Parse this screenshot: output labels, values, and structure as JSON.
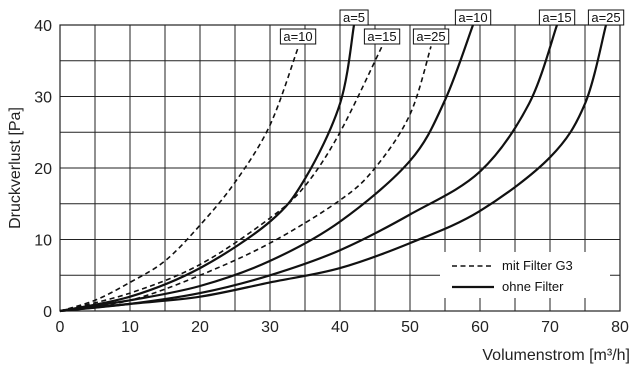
{
  "chart_data": {
    "type": "line",
    "title": "",
    "xlabel": "Volumenstrom [m³/h]",
    "ylabel": "Druckverlust [Pa]",
    "xlim": [
      0,
      80
    ],
    "ylim": [
      0,
      40
    ],
    "xticks": [
      "0",
      "10",
      "20",
      "30",
      "40",
      "50",
      "60",
      "70",
      "80"
    ],
    "yticks": [
      "0",
      "10",
      "20",
      "30",
      "40"
    ],
    "grid": true,
    "line_color": "#111111",
    "series": [
      {
        "label": "a=10",
        "group": "with_filter",
        "style": "dashed",
        "x": [
          0,
          5,
          10,
          15,
          20,
          25,
          30,
          34
        ],
        "y": [
          0,
          1.5,
          4,
          7,
          12,
          18,
          26,
          36.8
        ]
      },
      {
        "label": "a=15",
        "group": "with_filter",
        "style": "dashed",
        "x": [
          0,
          10,
          20,
          30,
          35,
          40,
          46
        ],
        "y": [
          0,
          2.5,
          6.5,
          13,
          17.5,
          25,
          37
        ]
      },
      {
        "label": "a=25",
        "group": "with_filter",
        "style": "dashed",
        "x": [
          0,
          10,
          20,
          30,
          40,
          45,
          50,
          53
        ],
        "y": [
          0,
          1.5,
          5,
          9.5,
          15.5,
          20,
          27.5,
          37
        ]
      },
      {
        "label": "a=5",
        "group": "without_filter",
        "style": "solid",
        "x": [
          0,
          10,
          20,
          30,
          35,
          40,
          42
        ],
        "y": [
          0,
          2,
          6,
          12.5,
          18.5,
          29,
          40
        ]
      },
      {
        "label": "a=10",
        "group": "without_filter",
        "style": "solid",
        "x": [
          0,
          10,
          20,
          30,
          40,
          50,
          55,
          59
        ],
        "y": [
          0,
          1.5,
          3.5,
          7,
          12.5,
          21,
          29.5,
          40
        ]
      },
      {
        "label": "a=15",
        "group": "without_filter",
        "style": "solid",
        "x": [
          0,
          10,
          20,
          30,
          40,
          50,
          60,
          67,
          71
        ],
        "y": [
          0,
          1,
          2.5,
          5,
          8.5,
          13.5,
          19.5,
          29,
          40
        ]
      },
      {
        "label": "a=25",
        "group": "without_filter",
        "style": "solid",
        "x": [
          0,
          10,
          20,
          30,
          40,
          50,
          60,
          70,
          75,
          78
        ],
        "y": [
          0,
          1,
          2,
          4,
          6,
          9.5,
          14,
          21.5,
          29,
          40
        ]
      }
    ],
    "legend": {
      "position": "bottom-right",
      "items": [
        {
          "label": "mit Filter G3",
          "style": "dashed"
        },
        {
          "label": "ohne Filter",
          "style": "solid"
        }
      ]
    }
  }
}
